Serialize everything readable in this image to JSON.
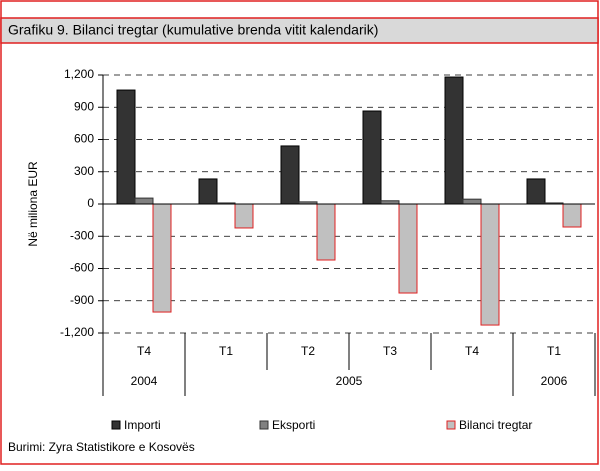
{
  "chart_data": {
    "type": "bar",
    "title": "Grafiku 9. Bilanci tregtar (kumulative brenda vitit kalendarik)",
    "ylabel": "Në miliona EUR",
    "categories": [
      "T4",
      "T1",
      "T2",
      "T3",
      "T4",
      "T1"
    ],
    "x_groups": [
      {
        "label": "2004",
        "count": 1
      },
      {
        "label": "2005",
        "count": 4
      },
      {
        "label": "2006",
        "count": 1
      }
    ],
    "series": [
      {
        "name": "Importi",
        "color": "#333333",
        "values": [
          1060,
          233,
          540,
          865,
          1181,
          233
        ]
      },
      {
        "name": "Eksporti",
        "color": "#808080",
        "values": [
          55,
          10,
          20,
          30,
          45,
          10
        ]
      },
      {
        "name": "Bilanci tregtar",
        "color": "#c0c0c0",
        "values": [
          -1005,
          -223,
          -521,
          -828,
          -1126,
          -214
        ]
      }
    ],
    "ylim": [
      -1200,
      1200
    ],
    "yticks": [
      {
        "value": -1200,
        "label": "-1,200"
      },
      -900,
      -600,
      -300,
      0,
      300,
      600,
      900,
      {
        "value": 1200,
        "label": "1,200"
      }
    ],
    "grid": true,
    "legend": "bottom",
    "source": "Burimi: Zyra Statistikore e Kosovës"
  }
}
